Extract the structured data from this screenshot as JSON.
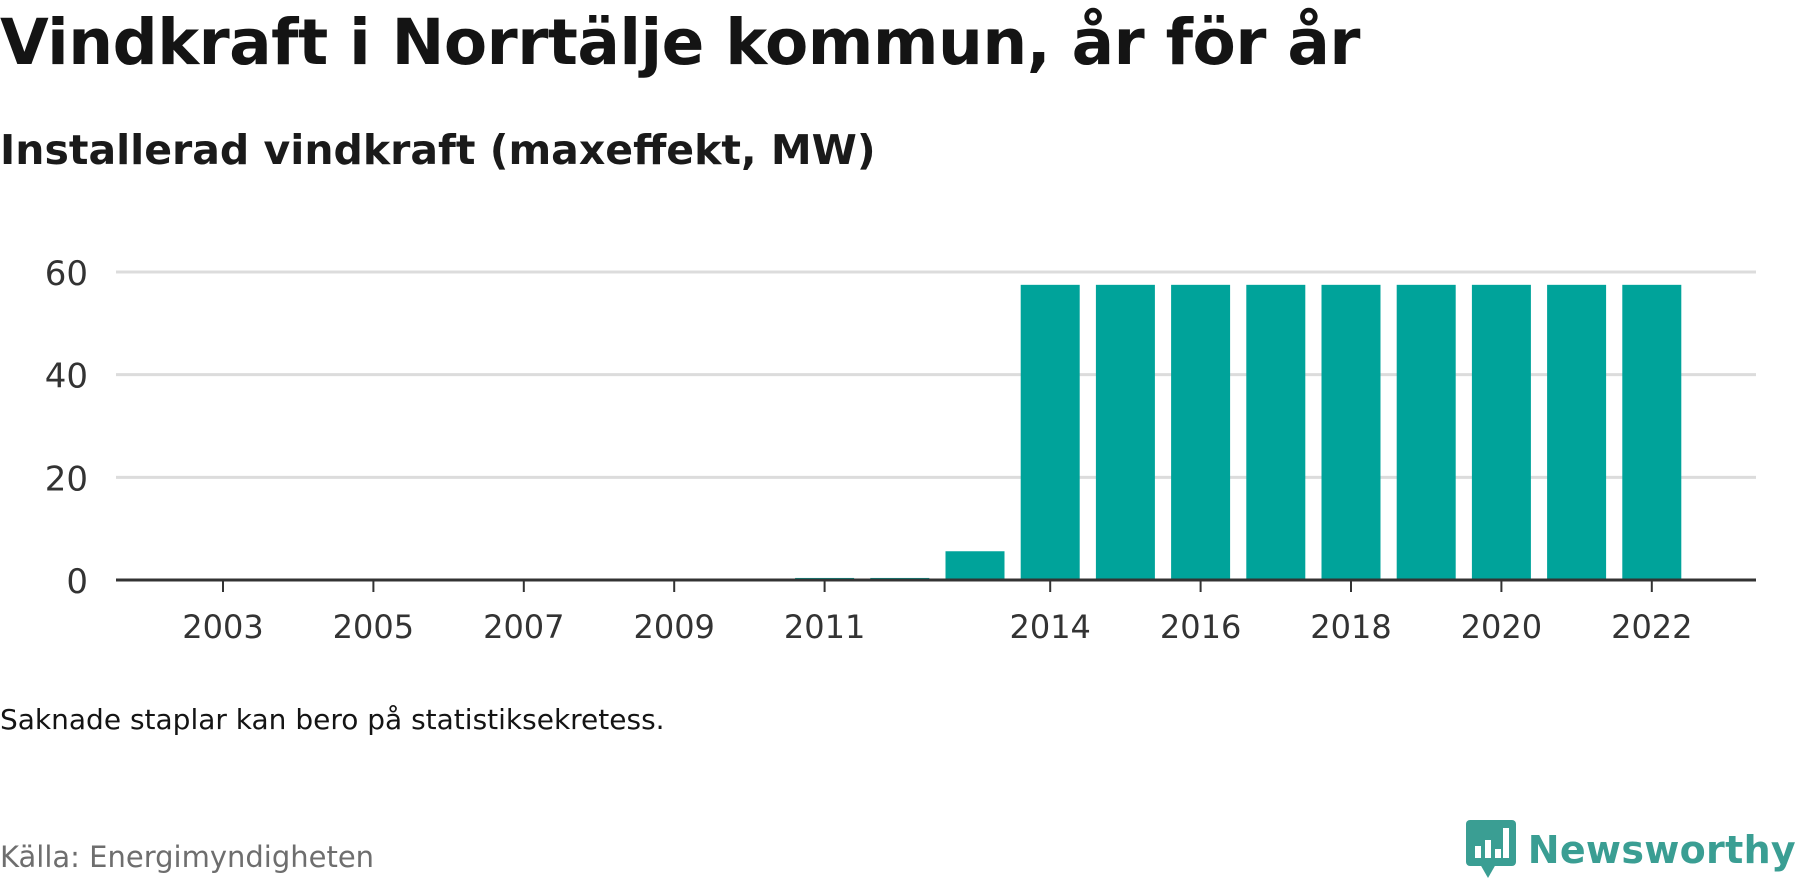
{
  "title": "Vindkraft i Norrtälje kommun, år för år",
  "subtitle": "Installerad vindkraft (maxeffekt, MW)",
  "note": "Saknade staplar kan bero på statistiksekretess.",
  "source": "Källa: Energimyndigheten",
  "brand": {
    "name": "Newsworthy",
    "icon": "newsworthy-logo-icon",
    "color": "#3a9e93"
  },
  "chart_data": {
    "type": "bar",
    "categories": [
      "2003",
      "2004",
      "2005",
      "2006",
      "2007",
      "2008",
      "2009",
      "2010",
      "2011",
      "2012",
      "2013",
      "2014",
      "2015",
      "2016",
      "2017",
      "2018",
      "2019",
      "2020",
      "2021",
      "2022"
    ],
    "values": [
      0,
      0,
      0,
      0,
      0,
      0,
      0,
      0,
      0.4,
      0.4,
      5.6,
      57.5,
      57.5,
      57.5,
      57.5,
      57.5,
      57.5,
      57.5,
      57.5,
      57.5
    ],
    "x_tick_labels": [
      "2003",
      "2005",
      "2007",
      "2009",
      "2011",
      "2014",
      "2016",
      "2018",
      "2020",
      "2022"
    ],
    "y_ticks": [
      0,
      20,
      40,
      60
    ],
    "ylim": [
      0,
      60
    ],
    "bar_color": "#00a39a",
    "grid": true,
    "legend": "none"
  }
}
